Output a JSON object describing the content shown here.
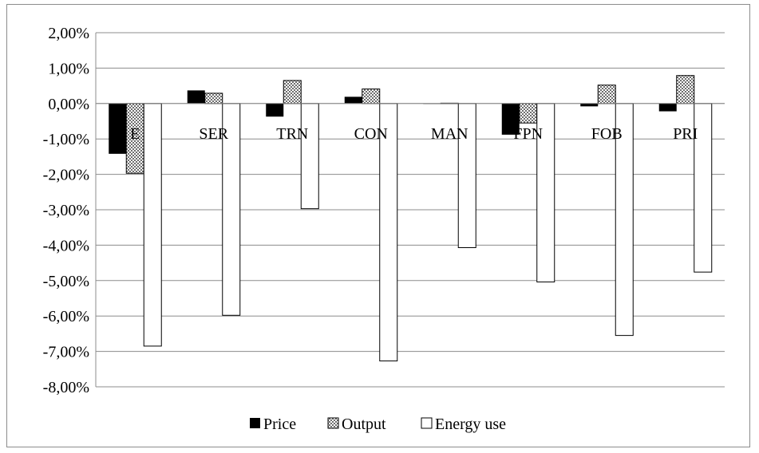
{
  "chart_data": {
    "type": "bar",
    "categories": [
      "E",
      "SER",
      "TRN",
      "CON",
      "MAN",
      "FPN",
      "FOB",
      "PRI"
    ],
    "series": [
      {
        "name": "Price",
        "values": [
          -1.42,
          0.37,
          -0.37,
          0.19,
          0.0,
          -0.88,
          -0.08,
          -0.22
        ],
        "color": "#000000",
        "pattern": "solid"
      },
      {
        "name": "Output",
        "values": [
          -1.97,
          0.29,
          0.65,
          0.41,
          0.01,
          -0.55,
          0.52,
          0.79
        ],
        "color": "#808080",
        "pattern": "checker"
      },
      {
        "name": "Energy use",
        "values": [
          -6.85,
          -5.98,
          -2.97,
          -7.27,
          -4.07,
          -5.04,
          -6.55,
          -4.76
        ],
        "color": "#ffffff",
        "pattern": "outline"
      }
    ],
    "ylim": [
      -8,
      2
    ],
    "yticks": [
      2,
      1,
      0,
      -1,
      -2,
      -3,
      -4,
      -5,
      -6,
      -7,
      -8
    ],
    "ytick_labels": [
      "2,00%",
      "1,00%",
      "0,00%",
      "-1,00%",
      "-2,00%",
      "-3,00%",
      "-4,00%",
      "-5,00%",
      "-6,00%",
      "-7,00%",
      "-8,00%"
    ],
    "title": "",
    "xlabel": "",
    "ylabel": "",
    "grid": true,
    "legend_position": "bottom"
  }
}
